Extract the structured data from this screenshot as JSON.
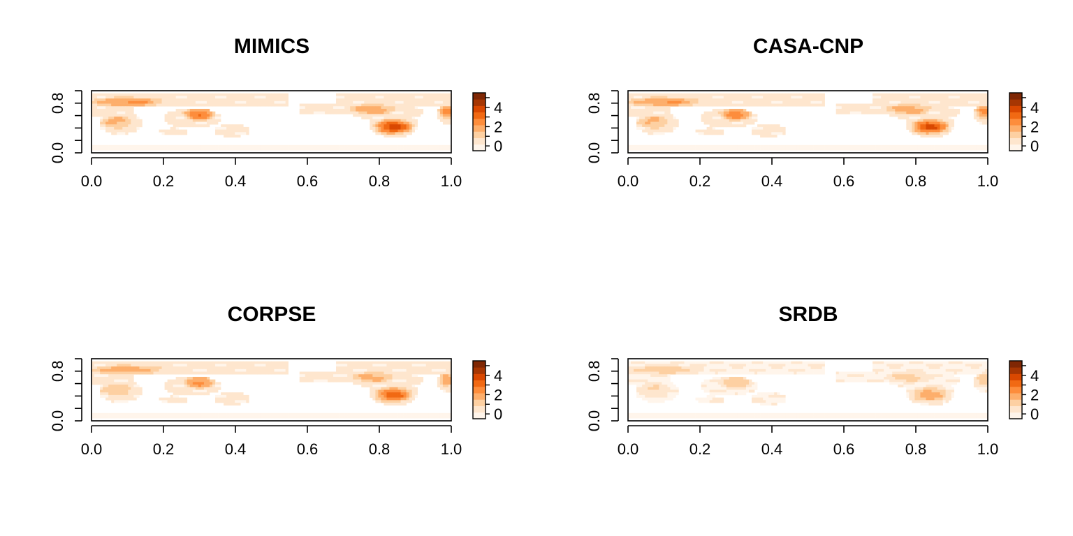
{
  "chart_data": [
    {
      "type": "heatmap",
      "title": "MIMICS",
      "x_ticks": [
        "0.0",
        "0.2",
        "0.4",
        "0.6",
        "0.8",
        "1.0"
      ],
      "y_ticks": [
        "0.0",
        "0.8"
      ],
      "xlim": [
        0,
        1
      ],
      "ylim": [
        0,
        1
      ],
      "colorbar": {
        "ticks": [
          "0",
          "2",
          "4"
        ],
        "range": [
          -0.5,
          5.5
        ]
      },
      "value_scale": 1.0
    },
    {
      "type": "heatmap",
      "title": "CASA-CNP",
      "x_ticks": [
        "0.0",
        "0.2",
        "0.4",
        "0.6",
        "0.8",
        "1.0"
      ],
      "y_ticks": [
        "0.0",
        "0.8"
      ],
      "xlim": [
        0,
        1
      ],
      "ylim": [
        0,
        1
      ],
      "colorbar": {
        "ticks": [
          "0",
          "2",
          "4"
        ],
        "range": [
          -0.5,
          5.5
        ]
      },
      "value_scale": 0.95
    },
    {
      "type": "heatmap",
      "title": "CORPSE",
      "x_ticks": [
        "0.0",
        "0.2",
        "0.4",
        "0.6",
        "0.8",
        "1.0"
      ],
      "y_ticks": [
        "0.0",
        "0.8"
      ],
      "xlim": [
        0,
        1
      ],
      "ylim": [
        0,
        1
      ],
      "colorbar": {
        "ticks": [
          "0",
          "2",
          "4"
        ],
        "range": [
          -0.5,
          5.5
        ]
      },
      "value_scale": 0.85
    },
    {
      "type": "heatmap",
      "title": "SRDB",
      "x_ticks": [
        "0.0",
        "0.2",
        "0.4",
        "0.6",
        "0.8",
        "1.0"
      ],
      "y_ticks": [
        "0.0",
        "0.8"
      ],
      "xlim": [
        0,
        1
      ],
      "ylim": [
        0,
        1
      ],
      "colorbar": {
        "ticks": [
          "0",
          "2",
          "4"
        ],
        "range": [
          -0.5,
          5.5
        ]
      },
      "value_scale": 0.55
    }
  ],
  "colors": {
    "palette": [
      "#fff5eb",
      "#fee6ce",
      "#fdd0a2",
      "#fdae6b",
      "#fd8d3c",
      "#f16913",
      "#d94801",
      "#a63603",
      "#7f2704"
    ],
    "axis": "#000000",
    "background": "#ffffff"
  }
}
